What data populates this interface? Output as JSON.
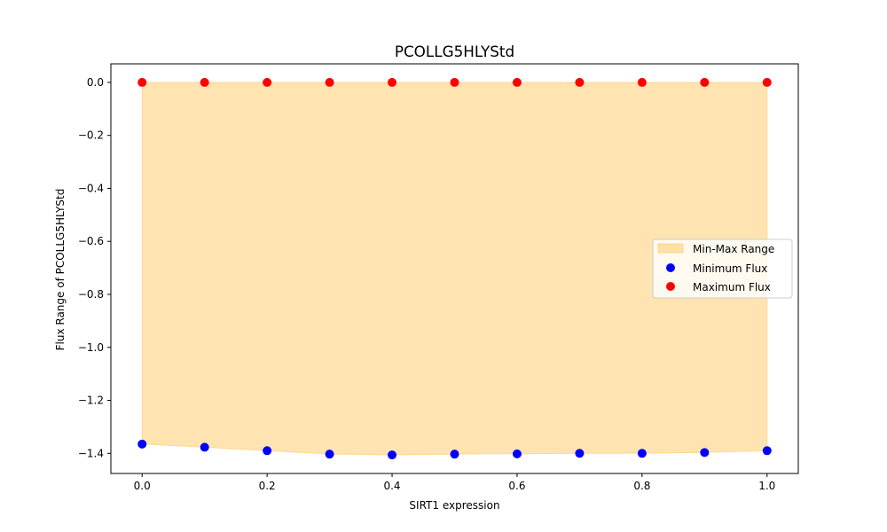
{
  "chart_data": {
    "type": "scatter",
    "title": "PCOLLG5HLYStd",
    "xlabel": "SIRT1 expression",
    "ylabel": "Flux Range of PCOLLG5HLYStd",
    "x": [
      0.0,
      0.1,
      0.2,
      0.3,
      0.4,
      0.5,
      0.6,
      0.7,
      0.8,
      0.9,
      1.0
    ],
    "series": [
      {
        "name": "Minimum Flux",
        "color": "#0000ff",
        "values": [
          -1.365,
          -1.377,
          -1.39,
          -1.403,
          -1.406,
          -1.403,
          -1.402,
          -1.4,
          -1.4,
          -1.397,
          -1.39
        ]
      },
      {
        "name": "Maximum Flux",
        "color": "#ff0000",
        "values": [
          0.0,
          0.0,
          0.0,
          0.0,
          0.0,
          0.0,
          0.0,
          0.0,
          0.0,
          0.0,
          0.0
        ]
      }
    ],
    "fill": {
      "name": "Min-Max Range",
      "color": "#ffa500",
      "alpha": 0.3
    },
    "xlim": [
      -0.05,
      1.05
    ],
    "ylim": [
      -1.476,
      0.07
    ],
    "xticks": [
      0.0,
      0.2,
      0.4,
      0.6,
      0.8,
      1.0
    ],
    "xtick_labels": [
      "0.0",
      "0.2",
      "0.4",
      "0.6",
      "0.8",
      "1.0"
    ],
    "yticks": [
      0.0,
      -0.2,
      -0.4,
      -0.6,
      -0.8,
      -1.0,
      -1.2,
      -1.4
    ],
    "ytick_labels": [
      "0.0",
      "−0.2",
      "−0.4",
      "−0.6",
      "−0.8",
      "−1.0",
      "−1.2",
      "−1.4"
    ],
    "grid": false,
    "legend_position": "center-right",
    "legend": [
      "Min-Max Range",
      "Minimum Flux",
      "Maximum Flux"
    ]
  }
}
